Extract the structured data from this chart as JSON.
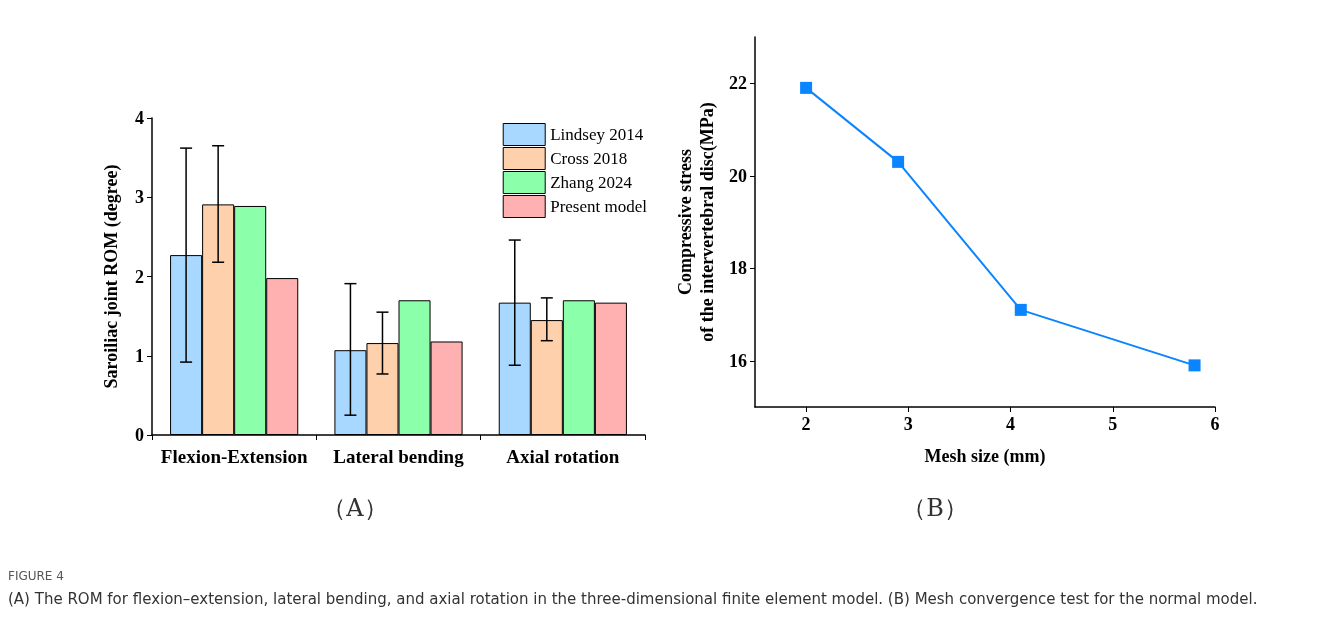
{
  "chart_data": [
    {
      "type": "bar",
      "ylabel": "Saroiliac joint ROM (degree)",
      "categories": [
        "Flexion-Extension",
        "Lateral bending",
        "Axial rotation"
      ],
      "series": [
        {
          "name": "Lindsey 2014",
          "color": "#a8d8ff",
          "values": [
            2.27,
            1.07,
            1.67
          ],
          "errors": [
            [
              0.92,
              3.62
            ],
            [
              0.25,
              1.91
            ],
            [
              0.88,
              2.46
            ]
          ]
        },
        {
          "name": "Cross 2018",
          "color": "#ffd0ac",
          "values": [
            2.91,
            1.16,
            1.45
          ],
          "errors": [
            [
              2.18,
              3.65
            ],
            [
              0.77,
              1.55
            ],
            [
              1.19,
              1.73
            ]
          ]
        },
        {
          "name": "Zhang 2024",
          "color": "#8cffaa",
          "values": [
            2.89,
            1.7,
            1.7
          ]
        },
        {
          "name": "Present model",
          "color": "#ffb0b0",
          "values": [
            1.98,
            1.18,
            1.67
          ]
        }
      ],
      "ylim": [
        0,
        4
      ],
      "yticks": [
        0,
        1,
        2,
        3,
        4
      ],
      "grid": false,
      "legend": "top right",
      "annotations": [
        "（A）",
        "FIGURE 4",
        "(A) The ROM for flexion–extension, lateral bending, and axial rotation in the three-dimensional finite element model. (B) Mesh convergence test for the normal model."
      ]
    },
    {
      "type": "line",
      "xlabel": "Mesh size (mm)",
      "ylabel": "Compressive stress\nof the intervertebral disc(MPa)",
      "x": [
        2,
        2.9,
        4.1,
        5.8
      ],
      "series": [
        {
          "color": "#0a84ff",
          "values": [
            21.9,
            20.3,
            17.1,
            15.9
          ]
        }
      ],
      "xlim": [
        1.5,
        6
      ],
      "xticks": [
        2,
        3,
        4,
        5,
        6
      ],
      "ylim": [
        15,
        23
      ],
      "yticks": [
        16,
        18,
        20,
        22
      ],
      "grid": false,
      "legend": false,
      "marker": "square",
      "line_style": "solid",
      "annotations": [
        "（B）"
      ]
    }
  ]
}
